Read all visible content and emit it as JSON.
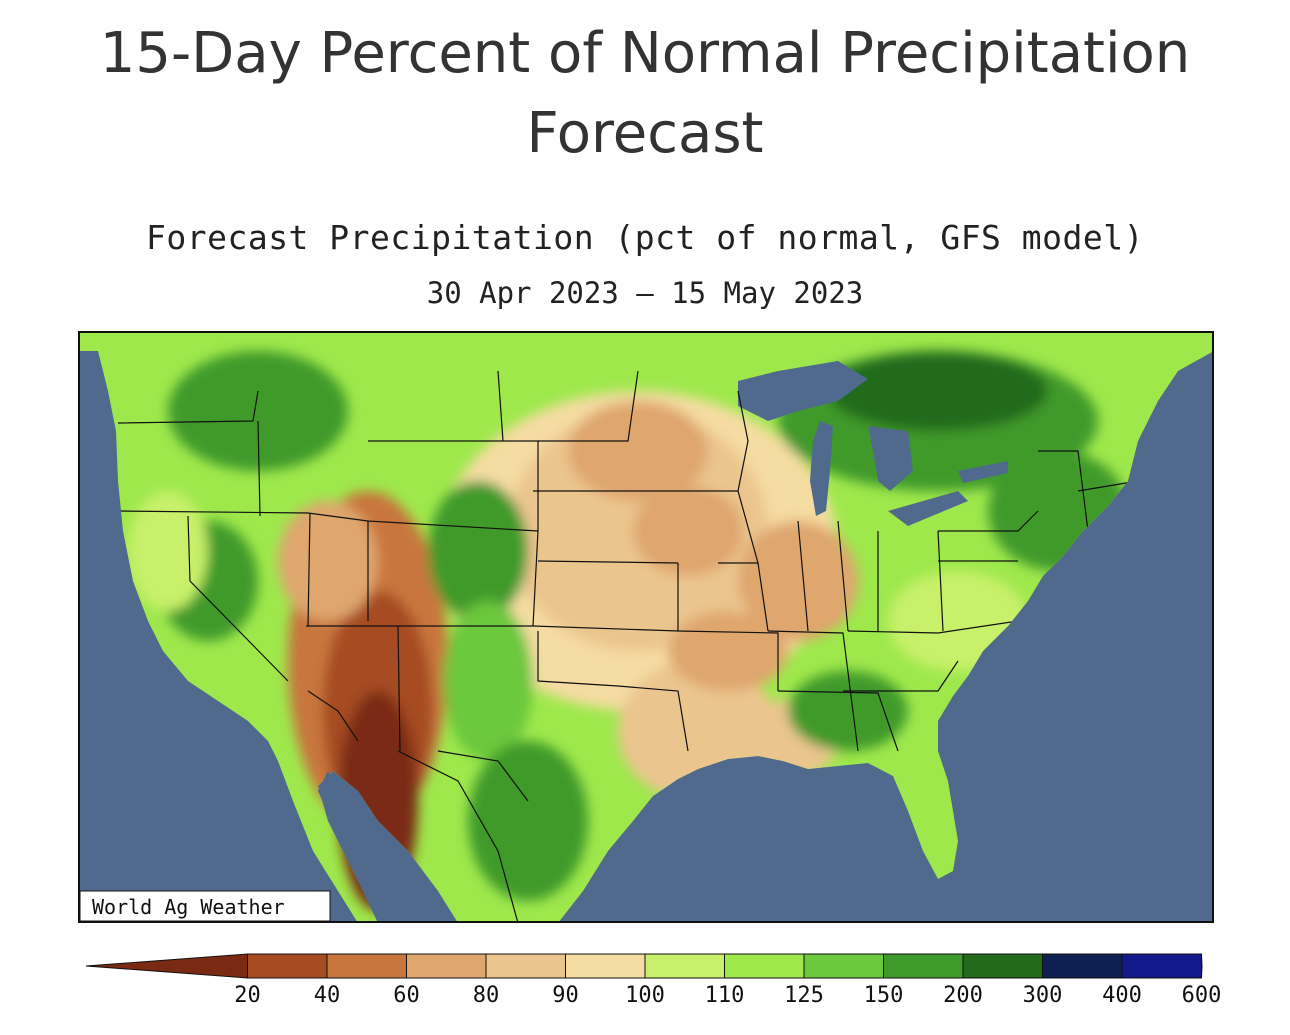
{
  "header": {
    "title_line1": "15-Day Percent of Normal Precipitation",
    "title_line2": "Forecast"
  },
  "map": {
    "subtitle": "Forecast Precipitation (pct of normal, GFS model)",
    "date_range": "30 Apr 2023 – 15 May 2023",
    "credit": "World Ag Weather",
    "colors": {
      "ocean": "#4f6a8c",
      "lt20": "#7a2a12",
      "b20_40": "#a64b22",
      "b40_60": "#c8763e",
      "b60_80": "#dfa66e",
      "b80_90": "#ebc58e",
      "b90_100": "#f5dca2",
      "b100_110": "#c8f06a",
      "b110_125": "#9ee84c",
      "b125_150": "#6cc83c",
      "b150_200": "#3f9a2c",
      "b200_300": "#236b1c",
      "b300_400": "#0e1f52",
      "b400_600": "#12198a",
      "gt600": "#1f2fff",
      "lake": "#4f6a8c"
    }
  },
  "legend": {
    "ticks": [
      "20",
      "40",
      "60",
      "80",
      "90",
      "100",
      "110",
      "125",
      "150",
      "200",
      "300",
      "400",
      "600"
    ],
    "colors": [
      "#7a2a12",
      "#a64b22",
      "#c8763e",
      "#dfa66e",
      "#ebc58e",
      "#f5dca2",
      "#c8f06a",
      "#9ee84c",
      "#6cc83c",
      "#3f9a2c",
      "#236b1c",
      "#0e1f52",
      "#12198a",
      "#1f2fff"
    ]
  }
}
